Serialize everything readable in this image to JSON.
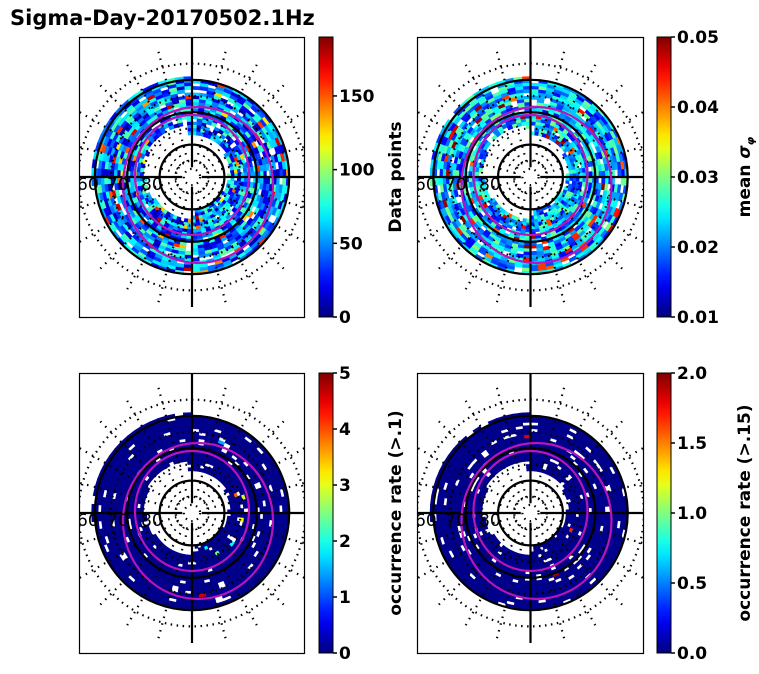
{
  "title": "Sigma-Day-20170502.1Hz",
  "chart_data": [
    {
      "type": "heatmap",
      "projection": "polar (magnetic latitude / MLT)",
      "title": "",
      "lat_labels": [
        "60",
        "70",
        "80"
      ],
      "lat_circles_solid": [
        60,
        70,
        80
      ],
      "colorbar": {
        "label": "Data points",
        "min": 0,
        "max": 190,
        "ticks": [
          0,
          50,
          100,
          150
        ],
        "tick_labels": [
          "0",
          "50",
          "100",
          "150"
        ],
        "colormap": "jet"
      },
      "description": "Annular distribution of measurement counts, mostly 0-100, some bins up to ~180 on the dusk/noon side",
      "ring_values": {
        "outer": 40,
        "mid": 80,
        "peak": 170
      }
    },
    {
      "type": "heatmap",
      "projection": "polar (magnetic latitude / MLT)",
      "title": "",
      "lat_labels": [
        "60",
        "70",
        "80"
      ],
      "lat_circles_solid": [
        60,
        70,
        80
      ],
      "colorbar": {
        "label": "mean σ_φ",
        "min": 0.01,
        "max": 0.05,
        "ticks": [
          0.01,
          0.02,
          0.03,
          0.04,
          0.05
        ],
        "tick_labels": [
          "0.01",
          "0.02",
          "0.03",
          "0.04",
          "0.05"
        ],
        "colormap": "jet"
      },
      "description": "Mean phase scintillation index, mostly 0.015-0.03, enhanced values (0.045-0.05) near cusp/noon and dawn sectors",
      "ring_values": {
        "outer": 0.02,
        "mid": 0.028,
        "peak": 0.05
      }
    },
    {
      "type": "heatmap",
      "projection": "polar (magnetic latitude / MLT)",
      "title": "",
      "lat_labels": [
        "60",
        "70",
        "80"
      ],
      "lat_circles_solid": [
        60,
        70,
        80
      ],
      "colorbar": {
        "label": "occurrence rate (>.1)",
        "min": 0,
        "max": 5,
        "ticks": [
          0,
          1,
          2,
          3,
          4,
          5
        ],
        "tick_labels": [
          "0",
          "1",
          "2",
          "3",
          "4",
          "5"
        ],
        "colormap": "jet"
      },
      "description": "Occurrence rate of σφ > 0.1, near zero almost everywhere with a few bins up to ~4-5 near noon and dawn",
      "ring_values": {
        "outer": 0,
        "mid": 0,
        "peak": 5
      }
    },
    {
      "type": "heatmap",
      "projection": "polar (magnetic latitude / MLT)",
      "title": "",
      "lat_labels": [
        "60",
        "70",
        "80"
      ],
      "lat_circles_solid": [
        60,
        70,
        80
      ],
      "colorbar": {
        "label": "occurrence rate (>.15)",
        "min": 0.0,
        "max": 2.0,
        "ticks": [
          0.0,
          0.5,
          1.0,
          1.5,
          2.0
        ],
        "tick_labels": [
          "0.0",
          "0.5",
          "1.0",
          "1.5",
          "2.0"
        ],
        "colormap": "jet"
      },
      "description": "Occurrence rate of σφ > 0.15, near zero almost everywhere with isolated bins up to ~2 near noon",
      "ring_values": {
        "outer": 0,
        "mid": 0,
        "peak": 2
      }
    }
  ]
}
